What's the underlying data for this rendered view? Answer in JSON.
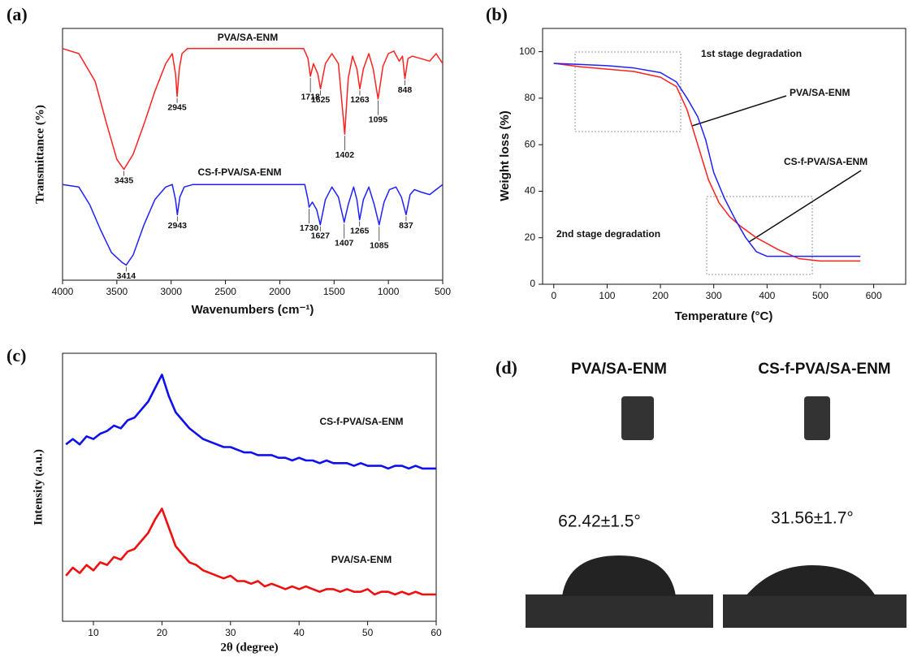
{
  "chart_data": [
    {
      "type": "line",
      "panel": "(a)",
      "x_label": "Wavenumbers (cm⁻¹)",
      "y_label": "Transmittance (%)",
      "xlim": [
        4000,
        500
      ],
      "xticks": [
        4000,
        3500,
        3000,
        2500,
        2000,
        1500,
        1000,
        500
      ],
      "ylim": [
        0,
        100
      ],
      "series": [
        {
          "name": "PVA/SA-ENM",
          "color": "#ff2020",
          "x": [
            4000,
            3850,
            3700,
            3600,
            3500,
            3435,
            3350,
            3250,
            3150,
            3050,
            2990,
            2960,
            2945,
            2925,
            2900,
            2850,
            1780,
            1740,
            1718,
            1690,
            1650,
            1625,
            1580,
            1520,
            1460,
            1402,
            1370,
            1330,
            1290,
            1263,
            1230,
            1180,
            1140,
            1095,
            1050,
            1000,
            950,
            900,
            870,
            848,
            820,
            780,
            700,
            620,
            560,
            500
          ],
          "values": [
            92,
            90,
            79,
            63,
            48,
            44,
            50,
            62,
            75,
            86,
            90,
            82,
            73,
            84,
            90,
            92,
            92,
            88,
            81,
            86,
            82,
            76,
            86,
            90,
            86,
            58,
            80,
            89,
            84,
            76,
            84,
            90,
            84,
            72,
            85,
            90,
            91,
            87,
            89,
            80,
            88,
            89,
            88,
            87,
            90,
            86
          ],
          "peaks": [
            3435,
            2945,
            1718,
            1625,
            1402,
            1263,
            1095,
            848
          ]
        },
        {
          "name": "CS-f-PVA/SA-ENM",
          "color": "#2020ff",
          "x": [
            4000,
            3850,
            3750,
            3650,
            3550,
            3450,
            3414,
            3350,
            3250,
            3150,
            3050,
            2990,
            2960,
            2943,
            2920,
            2880,
            2800,
            1770,
            1740,
            1730,
            1700,
            1660,
            1627,
            1580,
            1520,
            1460,
            1407,
            1370,
            1320,
            1290,
            1265,
            1230,
            1180,
            1130,
            1085,
            1040,
            990,
            930,
            880,
            837,
            800,
            760,
            700,
            620,
            560,
            500
          ],
          "values": [
            38,
            37,
            30,
            20,
            11,
            7,
            6,
            10,
            22,
            32,
            37,
            38,
            32,
            26,
            33,
            37,
            38,
            38,
            32,
            29,
            31,
            28,
            22,
            32,
            37,
            33,
            23,
            30,
            37,
            32,
            24,
            32,
            37,
            30,
            22,
            31,
            36,
            37,
            33,
            26,
            34,
            36,
            35,
            34,
            36,
            38
          ],
          "peaks": [
            3414,
            2943,
            1730,
            1627,
            1407,
            1265,
            1085,
            837
          ]
        }
      ]
    },
    {
      "type": "line",
      "panel": "(b)",
      "x_label": "Temperature (°C)",
      "y_label": "Weight loss (%)",
      "xlim": [
        -21,
        660
      ],
      "xticks": [
        0,
        100,
        200,
        300,
        400,
        500,
        600
      ],
      "ylim": [
        0,
        110
      ],
      "yticks": [
        0,
        20,
        40,
        60,
        80,
        100
      ],
      "annotations": [
        "1st stage degradation",
        "2nd stage degradation"
      ],
      "series": [
        {
          "name": "PVA/SA-ENM",
          "color": "#ff2020",
          "x": [
            0,
            50,
            100,
            150,
            200,
            230,
            250,
            270,
            290,
            310,
            330,
            350,
            380,
            420,
            460,
            500,
            575
          ],
          "values": [
            95,
            93.5,
            92.5,
            91.5,
            89,
            85,
            75,
            60,
            45,
            35,
            29,
            25,
            20,
            15,
            11,
            10,
            10
          ]
        },
        {
          "name": "CS-f-PVA/SA-ENM",
          "color": "#2020ff",
          "x": [
            0,
            50,
            100,
            150,
            200,
            230,
            250,
            270,
            285,
            300,
            320,
            340,
            360,
            380,
            400,
            450,
            500,
            575
          ],
          "values": [
            95,
            94.5,
            94,
            93,
            91,
            87,
            80,
            72,
            62,
            48,
            37,
            28,
            20,
            14,
            12,
            12,
            12,
            12
          ]
        }
      ]
    },
    {
      "type": "line",
      "panel": "(c)",
      "x_label": "2θ (degree)",
      "y_label": "Intensity (a.u.)",
      "xlim": [
        5.5,
        60
      ],
      "xticks": [
        10,
        20,
        30,
        40,
        50,
        60
      ],
      "ylim": [
        0,
        100
      ],
      "series": [
        {
          "name": "CS-f-PVA/SA-ENM",
          "color": "#1010ee",
          "x": [
            6,
            7,
            8,
            9,
            10,
            11,
            12,
            13,
            14,
            15,
            16,
            17,
            18,
            19,
            20,
            21,
            22,
            23,
            24,
            25,
            26,
            27,
            28,
            29,
            30,
            31,
            32,
            33,
            34,
            35,
            36,
            37,
            38,
            39,
            40,
            41,
            42,
            43,
            44,
            45,
            46,
            47,
            48,
            49,
            50,
            51,
            52,
            53,
            54,
            55,
            56,
            57,
            58,
            59,
            60
          ],
          "values": [
            66,
            68,
            66,
            69,
            68,
            70,
            71,
            73,
            72,
            75,
            76,
            79,
            82,
            87,
            92,
            84,
            78,
            75,
            72,
            70,
            68,
            67,
            66,
            65,
            65,
            64,
            63,
            63,
            62,
            62,
            62,
            61,
            61,
            60,
            61,
            60,
            60,
            59,
            60,
            59,
            59,
            59,
            58,
            59,
            58,
            58,
            58,
            57,
            58,
            58,
            57,
            58,
            57,
            57,
            57
          ]
        },
        {
          "name": "PVA/SA-ENM",
          "color": "#ee1010",
          "x": [
            6,
            7,
            8,
            9,
            10,
            11,
            12,
            13,
            14,
            15,
            16,
            17,
            18,
            19,
            20,
            21,
            22,
            23,
            24,
            25,
            26,
            27,
            28,
            29,
            30,
            31,
            32,
            33,
            34,
            35,
            36,
            37,
            38,
            39,
            40,
            41,
            42,
            43,
            44,
            45,
            46,
            47,
            48,
            49,
            50,
            51,
            52,
            53,
            54,
            55,
            56,
            57,
            58,
            59,
            60
          ],
          "values": [
            17,
            20,
            18,
            21,
            19,
            22,
            21,
            24,
            23,
            26,
            27,
            30,
            33,
            38,
            42,
            35,
            28,
            25,
            22,
            21,
            19,
            18,
            17,
            16,
            17,
            15,
            15,
            14,
            15,
            13,
            14,
            13,
            12,
            13,
            12,
            13,
            12,
            11,
            12,
            12,
            11,
            12,
            11,
            11,
            12,
            10,
            11,
            11,
            10,
            11,
            10,
            11,
            10,
            10,
            10
          ]
        }
      ]
    }
  ],
  "panel_d": {
    "label": "(d)",
    "samples": [
      {
        "name": "PVA/SA-ENM",
        "contact_angle": "62.42±1.5°"
      },
      {
        "name": "CS-f-PVA/SA-ENM",
        "contact_angle": "31.56±1.7°"
      }
    ]
  }
}
